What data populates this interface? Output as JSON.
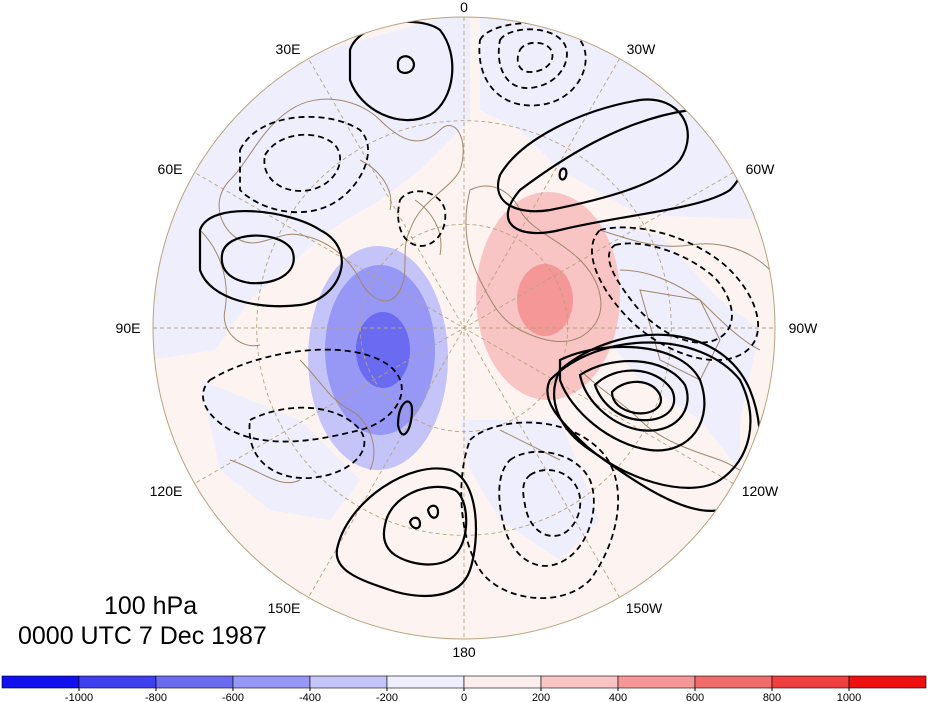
{
  "map": {
    "projection": "north-polar-stereographic",
    "longitude_labels": [
      "0",
      "30W",
      "60W",
      "90W",
      "120W",
      "150W",
      "180",
      "150E",
      "120E",
      "90E",
      "60E",
      "30E"
    ],
    "coastline_color": "#a0876a",
    "graticule_color": "#b8a37e"
  },
  "caption": {
    "level": "100 hPa",
    "time": "0000 UTC 7 Dec 1987"
  },
  "colorbar": {
    "tick_labels": [
      "-1000",
      "-800",
      "-600",
      "-400",
      "-200",
      "0",
      "200",
      "400",
      "600",
      "800",
      "1000"
    ],
    "colors": [
      "#1010ee",
      "#3f3ff0",
      "#6b6bf2",
      "#9797f5",
      "#c4c4f8",
      "#eeeefd",
      "#fdeeee",
      "#f8c4c4",
      "#f59797",
      "#f26b6b",
      "#f03f3f",
      "#ee1010"
    ]
  },
  "contours": {
    "positive_style": "solid",
    "negative_style": "dashed",
    "color": "#000000"
  }
}
